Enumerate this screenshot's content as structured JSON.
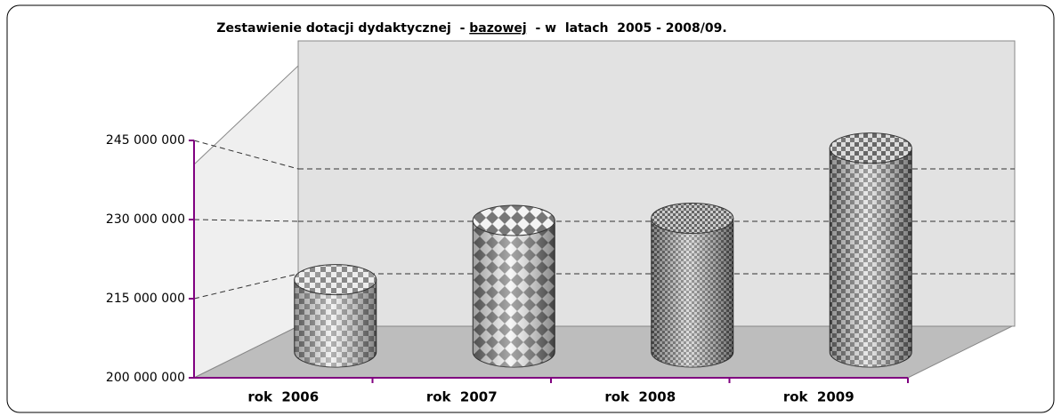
{
  "chart_data": {
    "type": "cylinder3d",
    "title": [
      "Zestawienie dotacji dydaktycznej  - ",
      "bazowej",
      "  - w  latach  2005 - 2008/09."
    ],
    "categories": [
      "rok  2006",
      "rok  2007",
      "rok  2008",
      "rok  2009"
    ],
    "values": [
      216500000,
      230000000,
      230500000,
      246500000
    ],
    "ylim": [
      200000000,
      245000000
    ],
    "yticks": [
      {
        "value": 200000000,
        "label": "200 000 000"
      },
      {
        "value": 215000000,
        "label": "215 000 000"
      },
      {
        "value": 230000000,
        "label": "230 000 000"
      },
      {
        "value": 245000000,
        "label": "245 000 000"
      }
    ],
    "grid": true,
    "axis_color": "#800080"
  }
}
